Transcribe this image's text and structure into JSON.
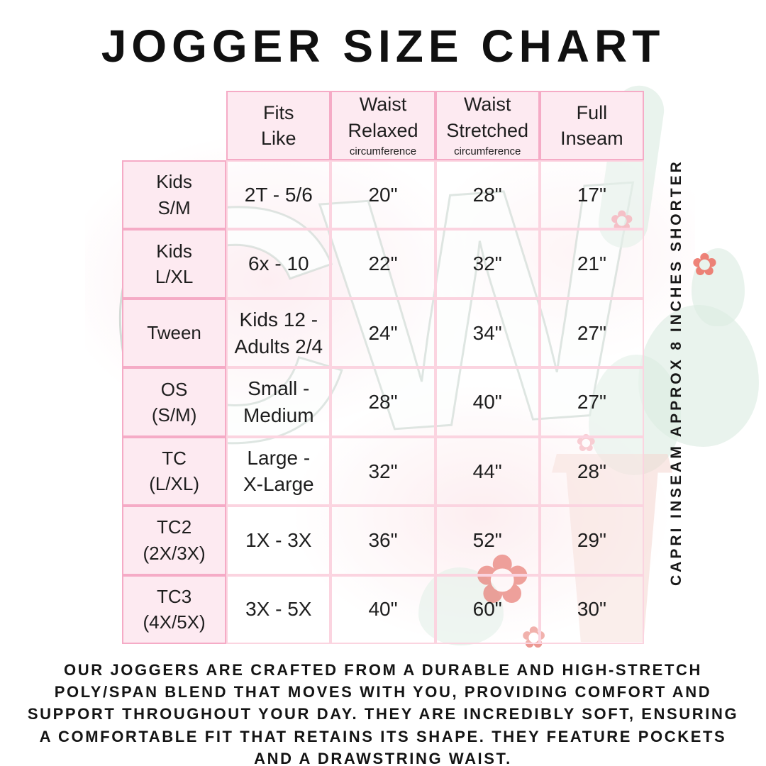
{
  "title": "JOGGER SIZE CHART",
  "table": {
    "columns": [
      {
        "label": "Fits\nLike",
        "sub": ""
      },
      {
        "label": "Waist\nRelaxed",
        "sub": "circumference"
      },
      {
        "label": "Waist\nStretched",
        "sub": "circumference"
      },
      {
        "label": "Full\nInseam",
        "sub": ""
      }
    ],
    "rows": [
      {
        "label": "Kids\nS/M",
        "cells": [
          "2T - 5/6",
          "20\"",
          "28\"",
          "17\""
        ]
      },
      {
        "label": "Kids\nL/XL",
        "cells": [
          "6x - 10",
          "22\"",
          "32\"",
          "21\""
        ]
      },
      {
        "label": "Tween",
        "cells": [
          "Kids 12 -\nAdults 2/4",
          "24\"",
          "34\"",
          "27\""
        ]
      },
      {
        "label": "OS\n(S/M)",
        "cells": [
          "Small -\nMedium",
          "28\"",
          "40\"",
          "27\""
        ]
      },
      {
        "label": "TC\n(L/XL)",
        "cells": [
          "Large -\nX-Large",
          "32\"",
          "44\"",
          "28\""
        ]
      },
      {
        "label": "TC2\n(2X/3X)",
        "cells": [
          "1X - 3X",
          "36\"",
          "52\"",
          "29\""
        ]
      },
      {
        "label": "TC3\n(4X/5X)",
        "cells": [
          "3X - 5X",
          "40\"",
          "60\"",
          "30\""
        ]
      }
    ]
  },
  "side_note": "CAPRI INSEAM APPROX 8 INCHES SHORTER",
  "description": "OUR JOGGERS ARE CRAFTED FROM A DURABLE AND HIGH-STRETCH POLY/SPAN BLEND THAT MOVES WITH YOU, PROVIDING COMFORT AND SUPPORT THROUGHOUT YOUR DAY. THEY ARE INCREDIBLY SOFT, ENSURING A COMFORTABLE FIT THAT RETAINS ITS SHAPE. THEY FEATURE POCKETS AND A DRAWSTRING WAIST.",
  "watermark": {
    "monogram": "CW",
    "flower_glyph": "✿"
  },
  "colors": {
    "border_strong_pink": "#f5abc6",
    "border_light_pink": "#fbd4e0",
    "header_fill_pink": "#fdeaf1",
    "text": "#1e1e1e",
    "cactus_sage": "#dcebe2",
    "flower_red": "#e0544a",
    "pot_salmon": "#f4d6d0"
  }
}
